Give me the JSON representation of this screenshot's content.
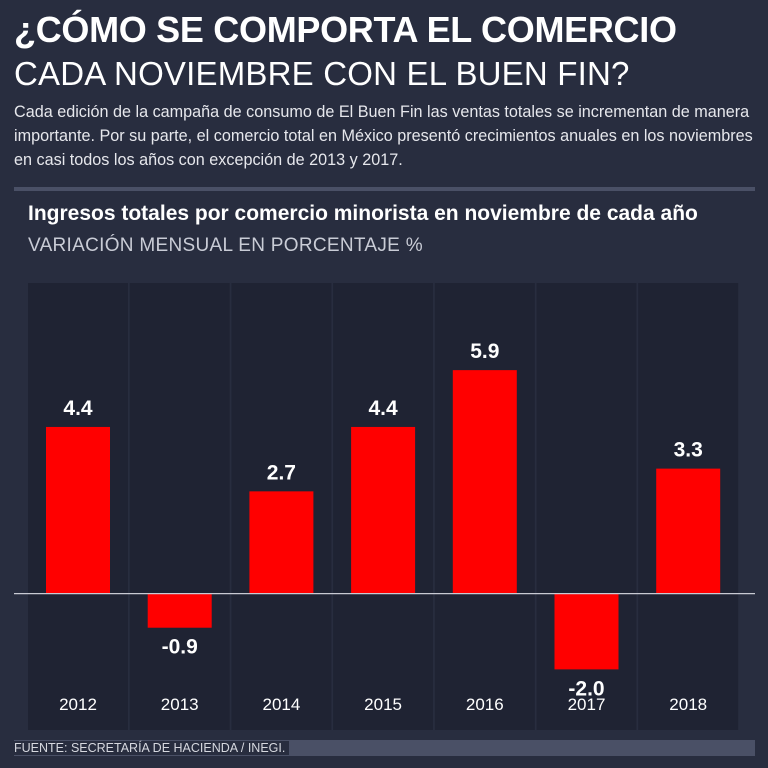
{
  "header": {
    "title_line1": "¿CÓMO SE COMPORTA EL COMERCIO",
    "title_line2": "CADA NOVIEMBRE CON EL BUEN FIN?",
    "intro": "Cada edición de la campaña de consumo de El Buen Fin las ventas totales se incrementan de manera importante. Por su parte, el comercio total en México presentó crecimientos anuales en los noviembres en casi todos los años con excepción de 2013 y 2017."
  },
  "chart_data": {
    "type": "bar",
    "title": "Ingresos totales por comercio minorista en noviembre de cada año",
    "subtitle": "VARIACIÓN MENSUAL EN PORCENTAJE %",
    "categories": [
      "2012",
      "2013",
      "2014",
      "2015",
      "2016",
      "2017",
      "2018"
    ],
    "values": [
      4.4,
      -0.9,
      2.7,
      4.4,
      5.9,
      -2.0,
      3.3
    ],
    "value_labels": [
      "4.4",
      "-0.9",
      "2.7",
      "4.4",
      "5.9",
      "-2.0",
      "3.3"
    ],
    "ylim": [
      -3.6,
      8.2
    ],
    "grid": false,
    "legend": "none"
  },
  "colors": {
    "background": "#282d3f",
    "column_band": "#1f2333",
    "bar": "#ff0000",
    "baseline": "#c8cad3",
    "text": "#ffffff"
  },
  "footer": {
    "source": "FUENTE: SECRETARÍA DE HACIENDA / INEGI."
  }
}
